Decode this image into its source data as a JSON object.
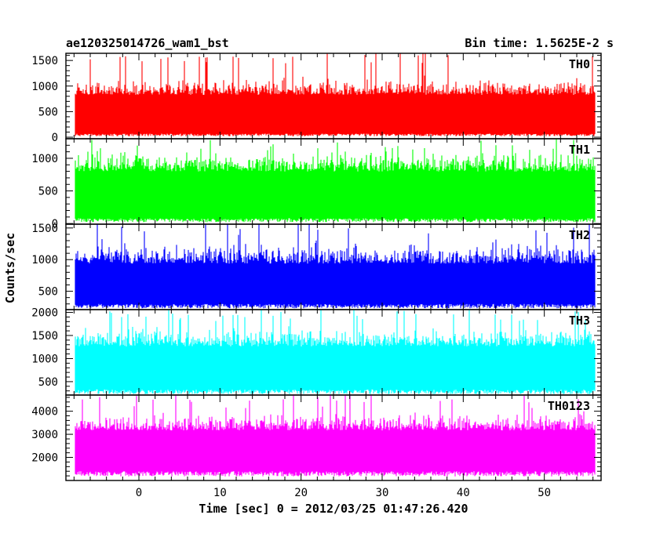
{
  "header": {
    "title": "ae120325014726_wam1_bst",
    "bin_time": "Bin time: 1.5625E-2 s"
  },
  "chart_data": {
    "type": "line",
    "xlabel": "Time [sec] 0 = 2012/03/25 01:47:26.420",
    "ylabel": "Counts/sec",
    "xlim": [
      -9,
      57
    ],
    "x_data_range": [
      -7.8,
      56.2
    ],
    "bin_time_s": 0.015625,
    "x_ticks": [
      0,
      10,
      20,
      30,
      40,
      50
    ],
    "panels": [
      {
        "name": "TH0",
        "color": "#ff0000",
        "ylim": [
          -30,
          1640
        ],
        "y_ticks": [
          0,
          500,
          1000,
          1500
        ],
        "base": [
          20,
          70
        ],
        "mean": 620,
        "spread": 230,
        "peak": 1640
      },
      {
        "name": "TH1",
        "color": "#00ff00",
        "ylim": [
          -10,
          1300
        ],
        "y_ticks": [
          0,
          500,
          1000
        ],
        "base": [
          20,
          80
        ],
        "mean": 590,
        "spread": 230,
        "peak": 1300
      },
      {
        "name": "TH2",
        "color": "#0000ff",
        "ylim": [
          210,
          1560
        ],
        "y_ticks": [
          500,
          1000,
          1500
        ],
        "base": [
          230,
          300
        ],
        "mean": 730,
        "spread": 230,
        "peak": 1560
      },
      {
        "name": "TH3",
        "color": "#00ffff",
        "ylim": [
          210,
          2060
        ],
        "y_ticks": [
          500,
          1000,
          1500,
          2000
        ],
        "base": [
          230,
          330
        ],
        "mean": 1000,
        "spread": 290,
        "peak": 2060
      },
      {
        "name": "TH0123",
        "color": "#ff00ff",
        "ylim": [
          1000,
          4700
        ],
        "y_ticks": [
          2000,
          3000,
          4000
        ],
        "base": [
          1180,
          1400
        ],
        "mean": 2700,
        "spread": 520,
        "peak": 4700
      }
    ]
  }
}
